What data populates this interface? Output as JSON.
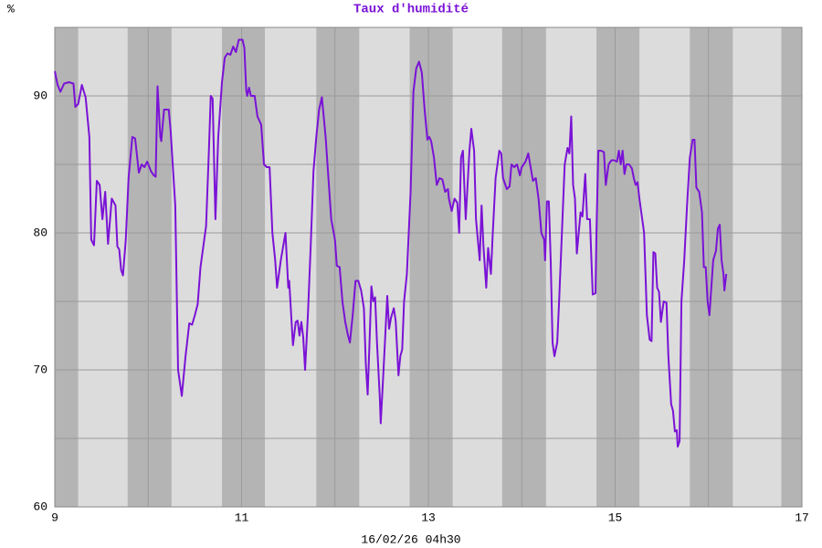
{
  "chart_data": {
    "type": "line",
    "title": "Taux d'humidité",
    "y_label": "%",
    "x_label": "16/02/26 04h30",
    "color": "#7a12d6",
    "xlim": [
      9,
      17
    ],
    "ylim": [
      60,
      95
    ],
    "xticks": [
      9,
      11,
      13,
      15,
      17
    ],
    "yticks": [
      60,
      70,
      80,
      90
    ],
    "x_minor_grid": [
      10,
      12,
      14,
      16
    ],
    "y_minor_grid": [
      65,
      75,
      85
    ],
    "grid": true,
    "shaded_bands": [
      [
        9,
        9.25
      ],
      [
        9.78,
        10.25
      ],
      [
        10.79,
        11.25
      ],
      [
        11.8,
        12.26
      ],
      [
        12.8,
        13.26
      ],
      [
        13.79,
        14.26
      ],
      [
        14.8,
        15.26
      ],
      [
        15.8,
        16.26
      ],
      [
        16.78,
        17
      ]
    ],
    "x": [
      9.0,
      9.03,
      9.06,
      9.1,
      9.15,
      9.2,
      9.22,
      9.25,
      9.29,
      9.33,
      9.37,
      9.39,
      9.42,
      9.45,
      9.48,
      9.51,
      9.54,
      9.57,
      9.61,
      9.65,
      9.67,
      9.69,
      9.71,
      9.73,
      9.76,
      9.79,
      9.83,
      9.86,
      9.9,
      9.93,
      9.96,
      9.99,
      10.03,
      10.06,
      10.08,
      10.1,
      10.13,
      10.14,
      10.17,
      10.22,
      10.24,
      10.29,
      10.32,
      10.36,
      10.4,
      10.44,
      10.47,
      10.5,
      10.53,
      10.56,
      10.59,
      10.62,
      10.65,
      10.67,
      10.69,
      10.72,
      10.75,
      10.79,
      10.82,
      10.85,
      10.88,
      10.91,
      10.94,
      10.97,
      11.01,
      11.03,
      11.05,
      11.06,
      11.08,
      11.1,
      11.14,
      11.17,
      11.21,
      11.24,
      11.27,
      11.3,
      11.33,
      11.36,
      11.38,
      11.42,
      11.47,
      11.5,
      11.51,
      11.55,
      11.58,
      11.6,
      11.62,
      11.64,
      11.66,
      11.68,
      11.71,
      11.74,
      11.77,
      11.8,
      11.83,
      11.86,
      11.9,
      11.93,
      11.96,
      12.0,
      12.02,
      12.05,
      12.08,
      12.11,
      12.14,
      12.16,
      12.19,
      12.22,
      12.25,
      12.28,
      12.31,
      12.33,
      12.35,
      12.37,
      12.39,
      12.41,
      12.43,
      12.45,
      12.48,
      12.49,
      12.52,
      12.56,
      12.58,
      12.6,
      12.63,
      12.65,
      12.68,
      12.7,
      12.72,
      12.74,
      12.77,
      12.81,
      12.84,
      12.87,
      12.9,
      12.93,
      12.96,
      12.99,
      13.01,
      13.03,
      13.06,
      13.09,
      13.12,
      13.15,
      13.18,
      13.21,
      13.22,
      13.25,
      13.28,
      13.31,
      13.33,
      13.35,
      13.37,
      13.4,
      13.42,
      13.44,
      13.46,
      13.49,
      13.51,
      13.53,
      13.55,
      13.57,
      13.59,
      13.62,
      13.64,
      13.67,
      13.69,
      13.72,
      13.76,
      13.78,
      13.8,
      13.84,
      13.87,
      13.89,
      13.92,
      13.95,
      13.98,
      14.0,
      14.04,
      14.07,
      14.09,
      14.12,
      14.15,
      14.18,
      14.21,
      14.24,
      14.25,
      14.27,
      14.29,
      14.31,
      14.33,
      14.35,
      14.38,
      14.4,
      14.43,
      14.46,
      14.49,
      14.51,
      14.53,
      14.55,
      14.57,
      14.59,
      14.61,
      14.63,
      14.65,
      14.68,
      14.7,
      14.73,
      14.76,
      14.79,
      14.8,
      14.82,
      14.85,
      14.88,
      14.9,
      14.93,
      14.96,
      14.99,
      15.02,
      15.04,
      15.06,
      15.08,
      15.1,
      15.12,
      15.15,
      15.18,
      15.2,
      15.22,
      15.24,
      15.26,
      15.29,
      15.31,
      15.34,
      15.37,
      15.39,
      15.41,
      15.43,
      15.45,
      15.47,
      15.49,
      15.52,
      15.55,
      15.57,
      15.6,
      15.62,
      15.64,
      15.66,
      15.67,
      15.69,
      15.71,
      15.74,
      15.77,
      15.8,
      15.83,
      15.85,
      15.87,
      15.9,
      15.93,
      15.95,
      15.97,
      15.99,
      16.01,
      16.03,
      16.05,
      16.08,
      16.1,
      16.12,
      16.14,
      16.16,
      16.17,
      16.19
    ],
    "values": [
      91.8,
      90.8,
      90.3,
      90.9,
      91.0,
      90.9,
      89.2,
      89.4,
      90.8,
      89.9,
      87,
      79.5,
      79.1,
      83.8,
      83.5,
      81,
      83,
      79.2,
      82.5,
      82,
      79,
      78.8,
      77.3,
      76.9,
      79.5,
      84,
      87,
      86.9,
      84.4,
      85,
      84.8,
      85.2,
      84.5,
      84.2,
      84.1,
      90.7,
      87,
      86.7,
      89,
      89,
      87.5,
      82,
      70,
      68.1,
      71,
      73.4,
      73.3,
      74,
      74.8,
      77.5,
      79,
      80.5,
      86,
      90,
      89.8,
      81,
      87,
      91,
      92.8,
      93.1,
      93,
      93.6,
      93.2,
      94.1,
      94.1,
      93.5,
      90.4,
      90,
      90.6,
      90,
      90,
      88.5,
      87.9,
      85,
      84.8,
      84.8,
      80,
      78,
      76,
      78,
      80,
      76,
      76.5,
      71.8,
      73.5,
      73.6,
      72.5,
      73.5,
      72.4,
      70,
      74,
      79,
      84.5,
      87,
      89,
      89.9,
      87,
      84,
      81,
      79.5,
      77.6,
      77.5,
      75,
      73.5,
      72.5,
      72,
      74,
      76.5,
      76.5,
      75.8,
      74.5,
      70.5,
      68.2,
      72,
      76.1,
      75,
      75.3,
      72,
      68,
      66.1,
      70,
      75.4,
      73,
      73.8,
      74.5,
      73.6,
      69.6,
      71,
      71.5,
      75,
      77,
      83,
      90.3,
      92,
      92.5,
      91.7,
      89,
      86.8,
      87,
      86.7,
      85.5,
      83.5,
      84,
      83.9,
      83,
      83.2,
      82.5,
      81.6,
      82.5,
      82.2,
      80,
      85.5,
      86,
      81,
      83.5,
      86,
      87.6,
      86,
      81,
      79.5,
      78,
      82,
      79,
      76,
      78.9,
      77,
      80,
      84,
      86,
      85.8,
      84,
      83.2,
      83.4,
      85,
      84.8,
      85,
      84.2,
      84.8,
      85.2,
      85.8,
      85,
      83.8,
      84,
      82.5,
      80,
      79.5,
      78,
      82.3,
      82.3,
      78,
      72,
      71,
      72,
      75,
      80,
      85,
      86.2,
      85.8,
      88.5,
      83.5,
      82.5,
      78.5,
      80,
      81.5,
      81.2,
      84.3,
      81,
      81,
      75.5,
      75.6,
      80,
      86,
      86,
      85.9,
      83.5,
      85,
      85.3,
      85.3,
      85.2,
      86,
      85,
      86,
      84.3,
      85,
      85,
      84.7,
      84,
      83.5,
      83.7,
      82.5,
      81,
      80,
      74,
      72.2,
      72.1,
      78.6,
      78.5,
      76,
      75.7,
      73.5,
      75,
      74.9,
      71,
      67.5,
      67,
      65.5,
      65.6,
      64.4,
      64.8,
      75,
      78,
      82,
      85.5,
      86.8,
      86.8,
      83.3,
      83,
      81.5,
      77.5,
      77.5,
      75,
      74,
      76,
      78,
      78.7,
      80.3,
      80.6,
      78,
      77,
      75.8,
      77
    ]
  }
}
